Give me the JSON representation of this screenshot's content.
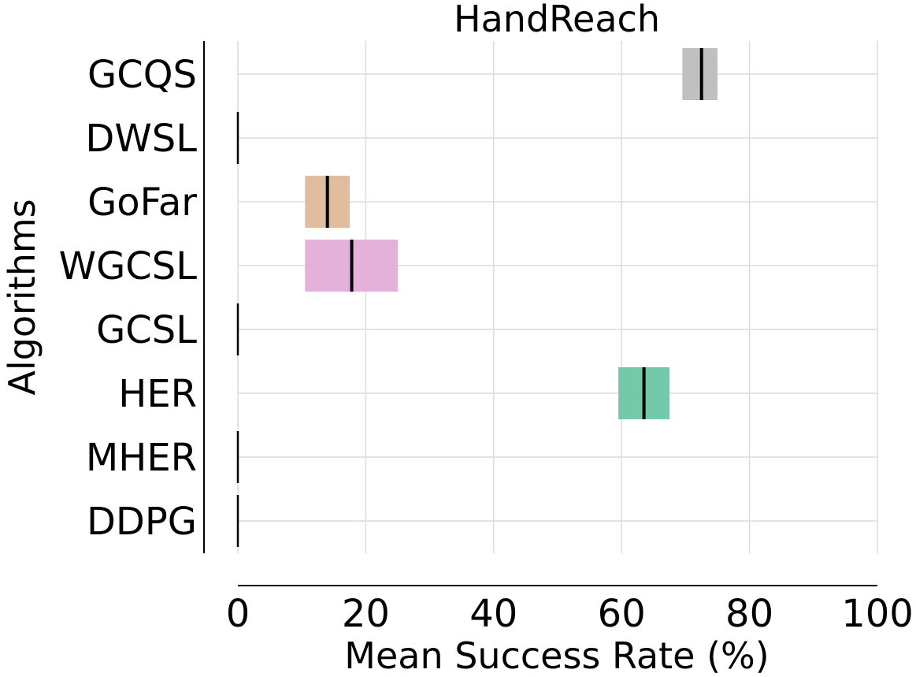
{
  "chart_data": {
    "type": "bar",
    "orientation": "horizontal",
    "title": "HandReach",
    "xlabel": "Mean Success Rate (%)",
    "ylabel": "Algorithms",
    "xlim": [
      0,
      100
    ],
    "xticks": [
      0,
      20,
      40,
      60,
      80,
      100
    ],
    "grid": true,
    "categories": [
      "GCQS",
      "DWSL",
      "GoFar",
      "WGCSL",
      "GCSL",
      "HER",
      "MHER",
      "DDPG"
    ],
    "mean": [
      72.5,
      0,
      14,
      17.8,
      0,
      63.5,
      0,
      0
    ],
    "ci_low": [
      69.5,
      0,
      10.5,
      10.5,
      0,
      59.5,
      0,
      0
    ],
    "ci_high": [
      75,
      0,
      17.5,
      25,
      0,
      67.5,
      0,
      0
    ],
    "colors": [
      "#bdbdbd",
      "#000000",
      "#deb99a",
      "#e2add8",
      "#000000",
      "#6cc6a5",
      "#000000",
      "#000000"
    ]
  }
}
